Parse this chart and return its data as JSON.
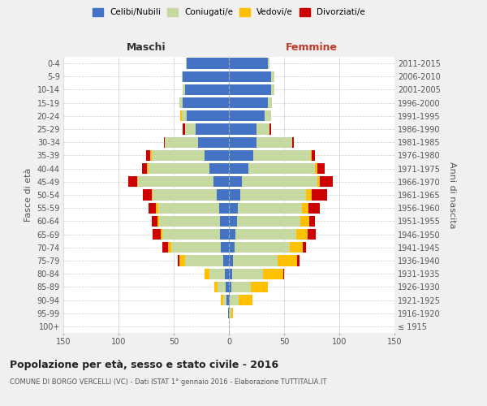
{
  "age_groups": [
    "100+",
    "95-99",
    "90-94",
    "85-89",
    "80-84",
    "75-79",
    "70-74",
    "65-69",
    "60-64",
    "55-59",
    "50-54",
    "45-49",
    "40-44",
    "35-39",
    "30-34",
    "25-29",
    "20-24",
    "15-19",
    "10-14",
    "5-9",
    "0-4"
  ],
  "birth_years": [
    "≤ 1915",
    "1916-1920",
    "1921-1925",
    "1926-1930",
    "1931-1935",
    "1936-1940",
    "1941-1945",
    "1946-1950",
    "1951-1955",
    "1956-1960",
    "1961-1965",
    "1966-1970",
    "1971-1975",
    "1976-1980",
    "1981-1985",
    "1986-1990",
    "1991-1995",
    "1996-2000",
    "2001-2005",
    "2006-2010",
    "2011-2015"
  ],
  "colors": {
    "celibi": "#4472c4",
    "coniugati": "#c5d9a0",
    "vedovi": "#ffc000",
    "divorziati": "#cc0000"
  },
  "maschi": {
    "celibi": [
      0,
      1,
      2,
      3,
      4,
      5,
      7,
      8,
      8,
      9,
      11,
      14,
      18,
      22,
      28,
      30,
      38,
      42,
      40,
      42,
      38
    ],
    "coniugati": [
      0,
      0,
      3,
      7,
      14,
      35,
      45,
      52,
      55,
      55,
      58,
      68,
      55,
      48,
      30,
      10,
      5,
      3,
      2,
      1,
      1
    ],
    "vedovi": [
      0,
      0,
      2,
      3,
      4,
      5,
      3,
      2,
      2,
      2,
      1,
      1,
      1,
      1,
      0,
      0,
      1,
      0,
      0,
      0,
      0
    ],
    "divorziati": [
      0,
      0,
      0,
      0,
      0,
      1,
      5,
      7,
      5,
      7,
      8,
      8,
      5,
      4,
      1,
      2,
      0,
      0,
      0,
      0,
      0
    ]
  },
  "femmine": {
    "celibi": [
      0,
      0,
      1,
      2,
      3,
      4,
      5,
      6,
      7,
      8,
      10,
      12,
      18,
      22,
      25,
      25,
      32,
      35,
      38,
      38,
      35
    ],
    "coniugati": [
      1,
      2,
      8,
      18,
      28,
      40,
      50,
      55,
      58,
      58,
      60,
      68,
      60,
      52,
      32,
      12,
      6,
      4,
      3,
      3,
      2
    ],
    "vedovi": [
      0,
      2,
      12,
      15,
      18,
      18,
      12,
      10,
      8,
      6,
      5,
      2,
      2,
      1,
      0,
      0,
      0,
      0,
      0,
      0,
      0
    ],
    "divorziati": [
      0,
      0,
      0,
      0,
      1,
      2,
      3,
      8,
      5,
      10,
      14,
      12,
      7,
      3,
      2,
      1,
      0,
      0,
      0,
      0,
      0
    ]
  },
  "xlim": 150,
  "title": "Popolazione per età, sesso e stato civile - 2016",
  "subtitle": "COMUNE DI BORGO VERCELLI (VC) - Dati ISTAT 1° gennaio 2016 - Elaborazione TUTTITALIA.IT",
  "ylabel_left": "Fasce di età",
  "ylabel_right": "Anni di nascita",
  "xlabel_left": "Maschi",
  "xlabel_right": "Femmine",
  "bg_color": "#f0f0f0",
  "plot_bg": "#ffffff"
}
